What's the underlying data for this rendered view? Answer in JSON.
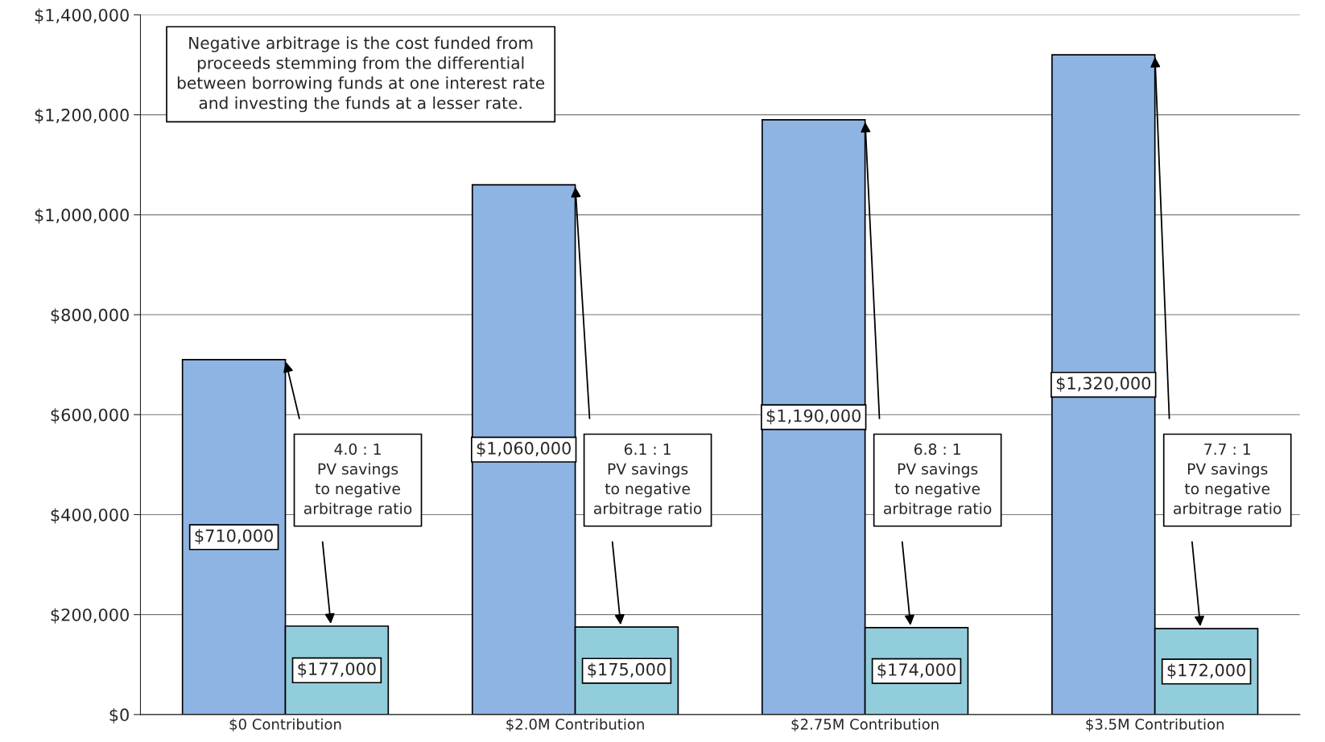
{
  "chart_data": {
    "type": "bar",
    "categories": [
      "$0 Contribution",
      "$2.0M Contribution",
      "$2.75M Contribution",
      "$3.5M Contribution"
    ],
    "series": [
      {
        "color": "#8eb4e3",
        "values": [
          710000,
          1060000,
          1190000,
          1320000
        ],
        "value_labels": [
          "$710,000",
          "$1,060,000",
          "$1,190,000",
          "$1,320,000"
        ]
      },
      {
        "color": "#92cddc",
        "values": [
          177000,
          175000,
          174000,
          172000
        ],
        "value_labels": [
          "$177,000",
          "$175,000",
          "$174,000",
          "$172,000"
        ]
      }
    ],
    "ylim": [
      0,
      1400000
    ],
    "yticks": [
      {
        "value": 0,
        "label": "$0"
      },
      {
        "value": 200000,
        "label": "$200,000"
      },
      {
        "value": 400000,
        "label": "$400,000"
      },
      {
        "value": 600000,
        "label": "$600,000"
      },
      {
        "value": 800000,
        "label": "$800,000"
      },
      {
        "value": 1000000,
        "label": "$1,000,000"
      },
      {
        "value": 1200000,
        "label": "$1,200,000"
      },
      {
        "value": 1400000,
        "label": "$1,400,000"
      }
    ],
    "grid": "y",
    "legend": false,
    "annotations": [
      "Negative arbitrage is the cost funded from\nproceeds stemming from the differential\nbetween borrowing funds at one interest rate\nand investing the funds at a lesser rate.",
      {
        "text": "4.0 : 1\nPV savings\nto negative\narbitrage ratio",
        "x": "$0 Contribution"
      },
      {
        "text": "6.1 : 1\nPV savings\nto negative\narbitrage ratio",
        "x": "$2.0M Contribution"
      },
      {
        "text": "6.8 : 1\nPV savings\nto negative\narbitrage ratio",
        "x": "$2.75M Contribution"
      },
      {
        "text": "7.7 : 1\nPV savings\nto negative\narbitrage ratio",
        "x": "$3.5M Contribution"
      }
    ]
  }
}
